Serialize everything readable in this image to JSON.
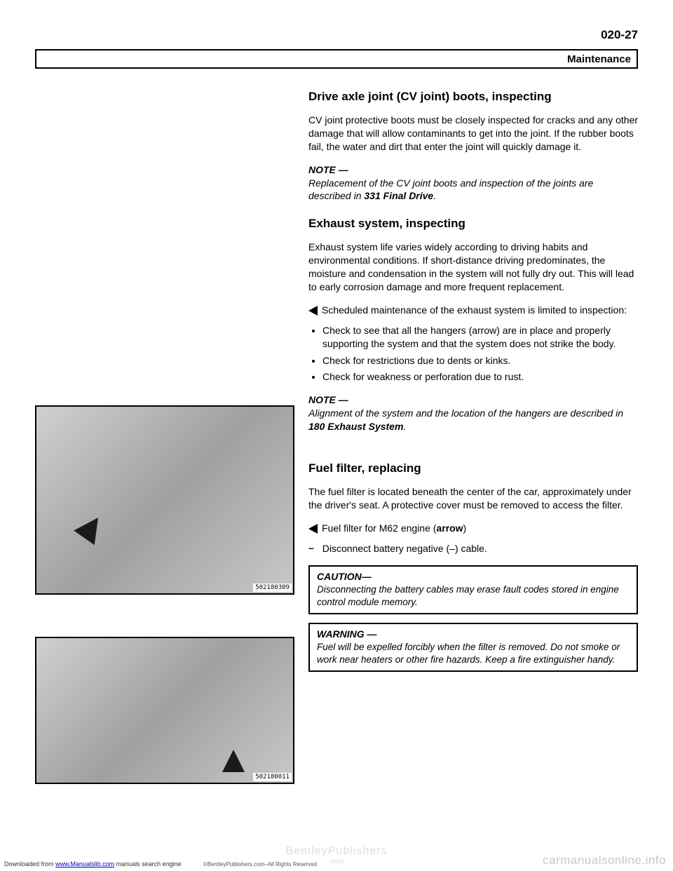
{
  "header": {
    "page_number": "020-27",
    "section_label": "Maintenance"
  },
  "sections": {
    "cv_joint": {
      "heading": "Drive axle joint (CV joint) boots, inspecting",
      "body": "CV joint protective boots must be closely inspected for cracks and any other damage that will allow contaminants to get into the joint. If the rubber boots fail, the water and dirt that enter the joint will quickly damage it.",
      "note_label": "NOTE —",
      "note_text_1": "Replacement of the CV joint boots and inspection of the joints are described in ",
      "note_ref": "331 Final Drive",
      "note_text_2": "."
    },
    "exhaust": {
      "heading": "Exhaust system, inspecting",
      "body": "Exhaust system life varies widely according to driving habits and environmental conditions. If short-distance driving predominates, the moisture and condensation in the system will not fully dry out. This will lead to early corrosion damage and more frequent replacement.",
      "marker_text": "Scheduled maintenance of the exhaust system is limited to inspection:",
      "bullets": [
        "Check to see that all the hangers (arrow) are in place and properly supporting the system and that the system does not strike the body.",
        "Check for restrictions due to dents or kinks.",
        "Check for weakness or perforation due to rust."
      ],
      "note_label": "NOTE —",
      "note_text_1": "Alignment of the system and the location of the hangers are described in ",
      "note_ref": "180 Exhaust System",
      "note_text_2": "."
    },
    "fuel_filter": {
      "heading": "Fuel filter, replacing",
      "body": "The fuel filter is located beneath the center of the car, approximately under the driver's seat. A protective cover must be removed to access the filter.",
      "marker_text_1": "Fuel filter for M62 engine (",
      "marker_bold": "arrow",
      "marker_text_2": ")",
      "dash_text": "Disconnect battery negative (–) cable.",
      "caution_label": "CAUTION—",
      "caution_text": "Disconnecting the battery cables may erase fault codes stored in engine control module memory.",
      "warning_label": "WARNING —",
      "warning_text": "Fuel will be expelled forcibly when the filter is removed. Do not smoke or work near heaters or other fire hazards. Keep a fire extinguisher handy."
    }
  },
  "figures": {
    "fig1_id": "502180309",
    "fig2_id": "502180011"
  },
  "footer": {
    "watermark": "BentleyPublishers",
    "watermark_sub": ".com",
    "left_1": "Downloaded from ",
    "left_link": "www.Manualslib.com",
    "left_2": " manuals search engine",
    "mid": "©BentleyPublishers.com–All Rights Reserved",
    "right": "carmanualsonline.info"
  }
}
